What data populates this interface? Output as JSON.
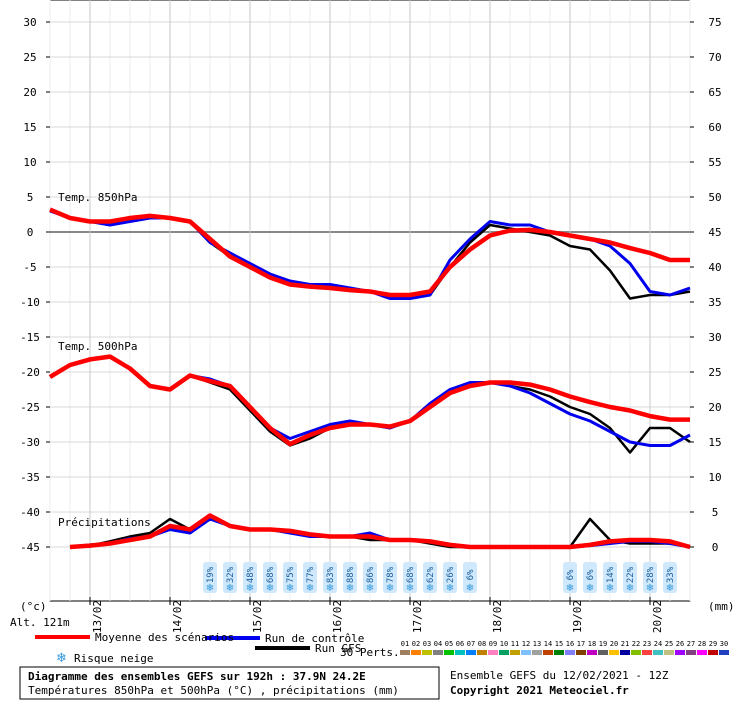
{
  "chart_data": {
    "type": "line",
    "title": "Diagramme des ensembles GEFS sur 192h : 37.9N 24.2E",
    "subtitle": "Températures 850hPa et 500hPa (°C) , précipitations (mm)",
    "run_info": "Ensemble GEFS du 12/02/2021 - 12Z",
    "copyright": "Copyright 2021 Meteociel.fr",
    "y_label": "(°c)",
    "y2_label": "(mm)",
    "altitude": "Alt. 121m",
    "annotations": [
      "Temp. 850hPa",
      "Temp. 500hPa",
      "Précipitations"
    ],
    "xlim": [
      0,
      192
    ],
    "xticks": [
      {
        "value": 12,
        "label": "13/02"
      },
      {
        "value": 36,
        "label": "14/02"
      },
      {
        "value": 60,
        "label": "15/02"
      },
      {
        "value": 84,
        "label": "16/02"
      },
      {
        "value": 108,
        "label": "17/02"
      },
      {
        "value": 132,
        "label": "18/02"
      },
      {
        "value": 156,
        "label": "19/02"
      },
      {
        "value": 180,
        "label": "20/02"
      }
    ],
    "ylim": [
      -45,
      30
    ],
    "yticks": [
      30,
      25,
      20,
      15,
      10,
      5,
      0,
      -5,
      -10,
      -15,
      -20,
      -25,
      -30,
      -35,
      -40,
      -45
    ],
    "y2lim": [
      0,
      75
    ],
    "y2ticks": [
      75,
      70,
      65,
      60,
      55,
      50,
      45,
      40,
      35,
      30,
      25,
      20,
      15,
      10,
      5,
      0
    ],
    "grid": true,
    "x": [
      0,
      6,
      12,
      18,
      24,
      30,
      36,
      42,
      48,
      54,
      60,
      66,
      72,
      78,
      84,
      90,
      96,
      102,
      108,
      114,
      120,
      126,
      132,
      138,
      144,
      150,
      156,
      162,
      168,
      174,
      180,
      186,
      192
    ],
    "series": [
      {
        "name": "Run GFS",
        "color": "#000000",
        "t850": [
          3,
          2,
          1.5,
          1,
          1.5,
          2,
          2,
          1.5,
          -1.5,
          -3.5,
          -5,
          -6,
          -7,
          -7.5,
          -8,
          -8,
          -8.5,
          -9,
          -9.5,
          -9,
          -5,
          -1.5,
          1,
          0.5,
          0,
          -0.5,
          -2,
          -2.5,
          -5.5,
          -9.5,
          -9,
          -9,
          -8.5
        ],
        "t500": [
          -20.7,
          -19,
          -18.2,
          -17.8,
          -19.5,
          -22,
          -22.5,
          -20.5,
          -21.5,
          -22.5,
          -25.5,
          -28.5,
          -30.5,
          -29.5,
          -28,
          -27.5,
          -27.5,
          -28,
          -27,
          -25,
          -23,
          -22,
          -21.5,
          -22,
          -22.5,
          -23.5,
          -25,
          -26,
          -28,
          -31.5,
          -28,
          -28,
          -30
        ],
        "precip": [
          null,
          0,
          0.2,
          0.8,
          1.5,
          2,
          4,
          2.5,
          4.5,
          3,
          2.5,
          2.5,
          2,
          1.5,
          1.5,
          1.5,
          1,
          1,
          1,
          0.5,
          0,
          0,
          0,
          0,
          0,
          0,
          0,
          4,
          1,
          0.5,
          0.5,
          0.5,
          0
        ]
      },
      {
        "name": "Run de contrôle",
        "color": "#0000ee",
        "t850": [
          3,
          2,
          1.5,
          1,
          1.5,
          2,
          2,
          1.5,
          -1.5,
          -3,
          -4.5,
          -6,
          -7,
          -7.5,
          -7.5,
          -8,
          -8.5,
          -9.5,
          -9.5,
          -9,
          -4,
          -1,
          1.5,
          1,
          1,
          0,
          -0.5,
          -1,
          -2,
          -4.5,
          -8.5,
          -9,
          -8
        ],
        "t500": [
          -20.7,
          -19,
          -18.2,
          -17.8,
          -19.5,
          -22,
          -22.5,
          -20.5,
          -21,
          -22,
          -25,
          -28,
          -29.5,
          -28.5,
          -27.5,
          -27,
          -27.5,
          -28,
          -27,
          -24.5,
          -22.5,
          -21.5,
          -21.5,
          -22,
          -23,
          -24.5,
          -26,
          -27,
          -28.5,
          -30,
          -30.5,
          -30.5,
          -29
        ],
        "precip": [
          null,
          0,
          0.3,
          0.5,
          1.2,
          1.5,
          2.5,
          2,
          4,
          3,
          2.5,
          2.5,
          2,
          1.5,
          1.5,
          1.5,
          2,
          1,
          1,
          0.8,
          0.3,
          0,
          0,
          0,
          0,
          0,
          0,
          0.2,
          0.5,
          0.8,
          0.8,
          0.5,
          0
        ]
      },
      {
        "name": "Moyenne des scénarios",
        "color": "#ff0000",
        "t850": [
          3.2,
          2,
          1.5,
          1.5,
          2,
          2.3,
          2,
          1.5,
          -1,
          -3.5,
          -5,
          -6.5,
          -7.5,
          -7.8,
          -8,
          -8.3,
          -8.5,
          -9,
          -9,
          -8.5,
          -5,
          -2.5,
          -0.5,
          0.2,
          0.3,
          0,
          -0.5,
          -1,
          -1.5,
          -2.3,
          -3,
          -4,
          -4
        ],
        "t500": [
          -20.7,
          -19,
          -18.2,
          -17.8,
          -19.5,
          -22,
          -22.5,
          -20.5,
          -21.3,
          -22,
          -25,
          -28,
          -30.3,
          -29,
          -28,
          -27.5,
          -27.5,
          -27.8,
          -27,
          -25,
          -23,
          -22,
          -21.5,
          -21.5,
          -21.8,
          -22.5,
          -23.5,
          -24.3,
          -25,
          -25.5,
          -26.3,
          -26.8,
          -26.8
        ],
        "precip": [
          null,
          0,
          0.2,
          0.5,
          1,
          1.5,
          3,
          2.5,
          4.5,
          3,
          2.5,
          2.5,
          2.3,
          1.8,
          1.5,
          1.5,
          1.5,
          1,
          1,
          0.8,
          0.3,
          0,
          0,
          0,
          0,
          0,
          0,
          0.3,
          0.8,
          1,
          1,
          0.8,
          0
        ]
      }
    ],
    "snow_risk": {
      "name": "Risque neige",
      "x": [
        48,
        54,
        60,
        66,
        72,
        78,
        84,
        90,
        96,
        102,
        108,
        114,
        120,
        126,
        156,
        162,
        168,
        174,
        180,
        186
      ],
      "values": [
        19,
        32,
        48,
        68,
        75,
        77,
        83,
        88,
        86,
        78,
        68,
        62,
        26,
        6,
        6,
        6,
        14,
        22,
        28,
        33
      ],
      "value_labels": [
        "19%",
        "32%",
        "48%",
        "68%",
        "75%",
        "77%",
        "83%",
        "88%",
        "86%",
        "78%",
        "68%",
        "62%",
        "26%",
        "6%",
        "6%",
        "6%",
        "14%",
        "22%",
        "28%",
        "33%"
      ]
    },
    "perturbations": {
      "name": "30 Perts.",
      "labels": [
        "01",
        "02",
        "03",
        "04",
        "05",
        "06",
        "07",
        "08",
        "09",
        "10",
        "11",
        "12",
        "13",
        "14",
        "15",
        "16",
        "17",
        "18",
        "19",
        "20",
        "21",
        "22",
        "23",
        "24",
        "25",
        "26",
        "27",
        "28",
        "29",
        "30"
      ],
      "colors": [
        "#a08060",
        "#ff8000",
        "#c0c000",
        "#808080",
        "#00c000",
        "#00c0c0",
        "#0080ff",
        "#c08000",
        "#ff80c0",
        "#00a060",
        "#c0a000",
        "#80c0ff",
        "#a0a0a0",
        "#c04000",
        "#008000",
        "#8080ff",
        "#804000",
        "#c000c0",
        "#606060",
        "#ffc000",
        "#0000a0",
        "#80c000",
        "#ff4040",
        "#40c0c0",
        "#c0c080",
        "#a000ff",
        "#804080",
        "#ff00ff",
        "#c00000",
        "#2040c0"
      ]
    }
  }
}
